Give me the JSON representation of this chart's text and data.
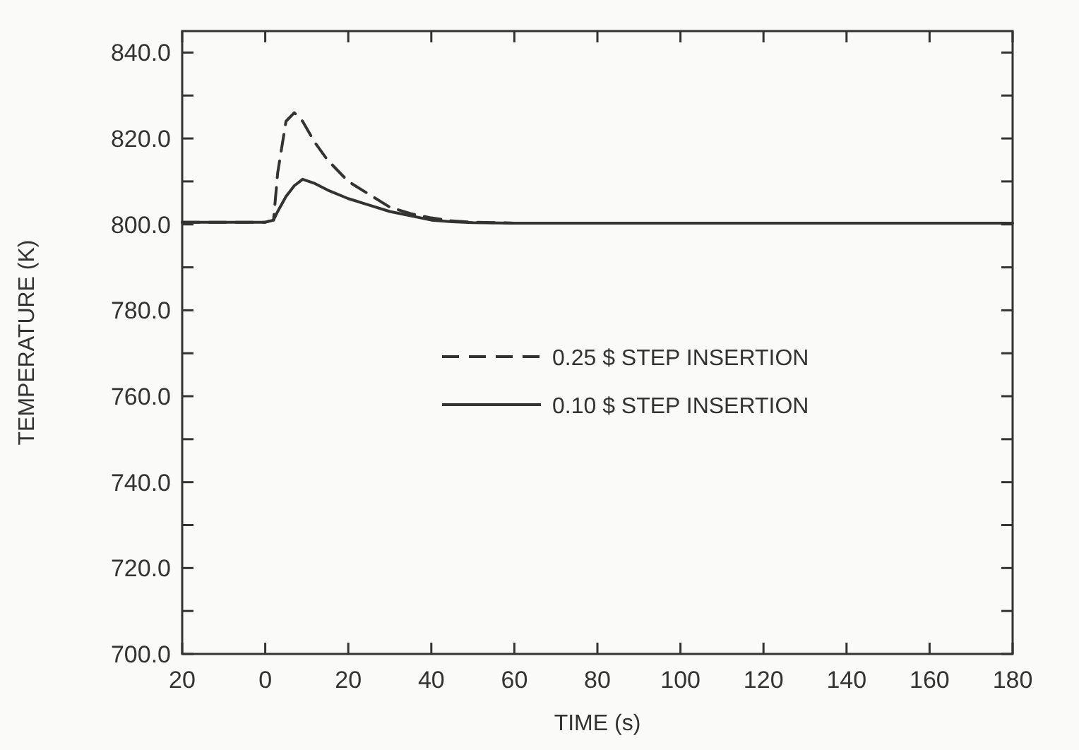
{
  "chart_data": {
    "type": "line",
    "xlabel": "TIME (s)",
    "ylabel": "TEMPERATURE (K)",
    "xlim": [
      -20,
      180
    ],
    "ylim": [
      700,
      845
    ],
    "xticks": [
      {
        "value": -20,
        "label": "20"
      },
      0,
      20,
      40,
      60,
      80,
      100,
      120,
      140,
      160,
      180
    ],
    "yticks": [
      {
        "value": 700,
        "label": "700.0"
      },
      {
        "value": 710,
        "label": null
      },
      {
        "value": 720,
        "label": "720.0"
      },
      {
        "value": 730,
        "label": null
      },
      {
        "value": 740,
        "label": "740.0"
      },
      {
        "value": 750,
        "label": null
      },
      {
        "value": 760,
        "label": "760.0"
      },
      {
        "value": 770,
        "label": null
      },
      {
        "value": 780,
        "label": "780.0"
      },
      {
        "value": 790,
        "label": null
      },
      {
        "value": 800,
        "label": "800.0"
      },
      {
        "value": 810,
        "label": null
      },
      {
        "value": 820,
        "label": "820.0"
      },
      {
        "value": 830,
        "label": null
      },
      {
        "value": 840,
        "label": "840.0"
      }
    ],
    "legend": "center",
    "grid": false,
    "series": [
      {
        "name": "0.25 $ STEP INSERTION",
        "color": "#333333",
        "line_style": "dashed",
        "x": [
          -20,
          0,
          2,
          3,
          5,
          7,
          9,
          12,
          15,
          20,
          25,
          30,
          35,
          40,
          45,
          50,
          60,
          100,
          180
        ],
        "values": [
          800.5,
          800.5,
          801,
          812,
          824,
          826,
          824,
          819,
          815,
          810,
          807,
          804,
          802.5,
          801.5,
          800.8,
          800.5,
          800.3,
          800.3,
          800.3
        ]
      },
      {
        "name": "0.10 $ STEP INSERTION",
        "color": "#333333",
        "line_style": "solid",
        "x": [
          -20,
          0,
          2,
          3,
          5,
          7,
          9,
          12,
          15,
          20,
          25,
          30,
          35,
          40,
          45,
          50,
          60,
          100,
          180
        ],
        "values": [
          800.5,
          800.5,
          801,
          803,
          806.5,
          809,
          810.5,
          809.5,
          808,
          806,
          804.5,
          803,
          802,
          801,
          800.6,
          800.4,
          800.3,
          800.3,
          800.3
        ]
      }
    ]
  }
}
